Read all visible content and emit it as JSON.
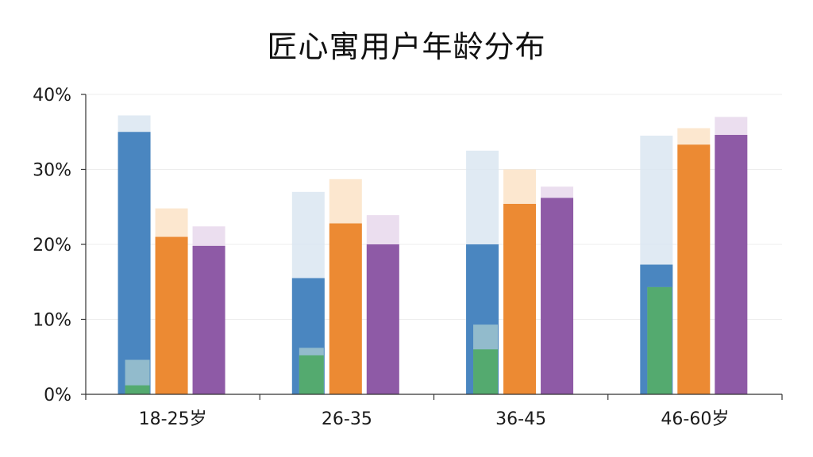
{
  "chart_data": {
    "type": "bar",
    "title": "匠心寓用户年龄分布",
    "xlabel": "",
    "ylabel": "",
    "categories": [
      "18-25岁",
      "26-35",
      "36-45",
      "46-60岁"
    ],
    "y_ticks": [
      "0%",
      "10%",
      "20%",
      "30%",
      "40%"
    ],
    "ylim": [
      0,
      40
    ],
    "grid": true,
    "legend": "none",
    "series": [
      {
        "values": [
          35.0,
          15.5,
          20.0,
          17.3
        ],
        "overlay_values": [
          37.2,
          27.0,
          32.5,
          34.5
        ],
        "color": "#4a86c0",
        "overlay_color": "#dbe6f1"
      },
      {
        "values": [
          21.0,
          22.8,
          25.4,
          33.3
        ],
        "overlay_values": [
          24.8,
          28.7,
          30.0,
          35.5
        ],
        "color": "#ec8a33",
        "overlay_color": "#fbe3c7"
      },
      {
        "values": [
          19.8,
          20.0,
          26.2,
          34.6
        ],
        "overlay_values": [
          22.4,
          23.9,
          27.7,
          37.0
        ],
        "color": "#8e5aa6",
        "overlay_color": "#e7d8ec"
      },
      {
        "values": [
          1.2,
          5.2,
          6.0,
          14.3
        ],
        "overlay_values": [
          4.6,
          6.2,
          9.3,
          14.3
        ],
        "color": "#4ea865",
        "overlay_color": "#cde8d5"
      }
    ]
  }
}
